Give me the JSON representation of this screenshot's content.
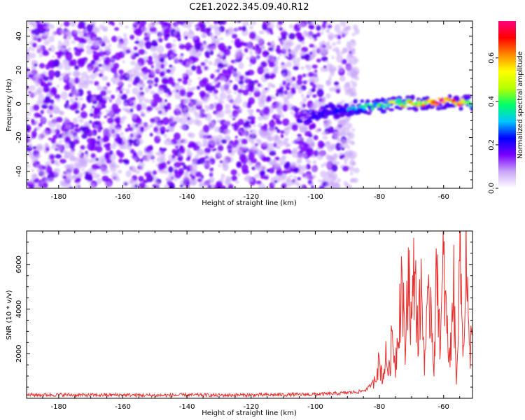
{
  "title": "C2E1.2022.345.09.40.R12",
  "chart_data": [
    {
      "type": "heatmap",
      "xlabel": "Height of straight line (km)",
      "ylabel": "Frequency (Hz)",
      "xlim": [
        -190,
        -51
      ],
      "ylim": [
        -50,
        49
      ],
      "xticks": [
        -180,
        -160,
        -140,
        -120,
        -100,
        -80,
        -60
      ],
      "yticks": [
        -40,
        -20,
        0,
        20,
        40
      ],
      "grid": false,
      "colorbar": {
        "label": "Normalized spectral amplitude",
        "range": [
          0,
          0.77
        ],
        "ticks": [
          0.0,
          0.2,
          0.4,
          0.6
        ],
        "colormap": [
          "#ffffff",
          "#c9a6f7",
          "#7a00ff",
          "#0000ff",
          "#00c8ff",
          "#00ff66",
          "#b8ff00",
          "#ffff00",
          "#ff8800",
          "#ff0000",
          "#ff0080"
        ]
      },
      "features": {
        "noise_floor": {
          "x_range": [
            -190,
            -87
          ],
          "y_range": [
            -50,
            49
          ],
          "amplitude": 0.1
        },
        "signal_ridge": [
          {
            "x": -105,
            "y": -7,
            "amp": 0.15
          },
          {
            "x": -100,
            "y": -6,
            "amp": 0.2
          },
          {
            "x": -95,
            "y": -4,
            "amp": 0.25
          },
          {
            "x": -90,
            "y": -3,
            "amp": 0.3
          },
          {
            "x": -85,
            "y": -2,
            "amp": 0.35
          },
          {
            "x": -80,
            "y": -1,
            "amp": 0.45
          },
          {
            "x": -75,
            "y": 0,
            "amp": 0.55
          },
          {
            "x": -70,
            "y": 0,
            "amp": 0.65
          },
          {
            "x": -65,
            "y": 1,
            "amp": 0.7
          },
          {
            "x": -60,
            "y": 1,
            "amp": 0.72
          },
          {
            "x": -55,
            "y": 1,
            "amp": 0.7
          },
          {
            "x": -52,
            "y": 1,
            "amp": 0.6
          }
        ]
      }
    },
    {
      "type": "line",
      "xlabel": "Height of straight line (km)",
      "ylabel": "SNR (10 * v/v)",
      "xlim": [
        -190,
        -51
      ],
      "ylim": [
        0,
        7500
      ],
      "xticks": [
        -180,
        -160,
        -140,
        -120,
        -100,
        -80,
        -60
      ],
      "yticks": [
        2000,
        4000,
        6000
      ],
      "grid": false,
      "color": "#e8302e",
      "series": [
        {
          "x": [
            -190,
            -180,
            -170,
            -160,
            -150,
            -140,
            -130,
            -120,
            -110,
            -100,
            -95,
            -90,
            -86,
            -84,
            -82,
            -81,
            -80,
            -79,
            -78,
            -77,
            -76,
            -75,
            -74,
            -73,
            -72,
            -71,
            -70,
            -69,
            -68,
            -67,
            -66,
            -65,
            -64,
            -63,
            -62,
            -61,
            -60,
            -59,
            -58,
            -57,
            -56,
            -55,
            -54,
            -53,
            -52,
            -51
          ],
          "y": [
            150,
            160,
            140,
            150,
            130,
            150,
            140,
            150,
            160,
            180,
            200,
            250,
            300,
            400,
            700,
            1200,
            1600,
            900,
            1800,
            1200,
            2800,
            1500,
            3500,
            5500,
            2000,
            6200,
            3000,
            6400,
            2500,
            5000,
            1800,
            3500,
            4500,
            1500,
            6300,
            2200,
            6000,
            3000,
            1500,
            5600,
            500,
            7500,
            2000,
            6500,
            1800,
            3200
          ]
        }
      ]
    }
  ]
}
